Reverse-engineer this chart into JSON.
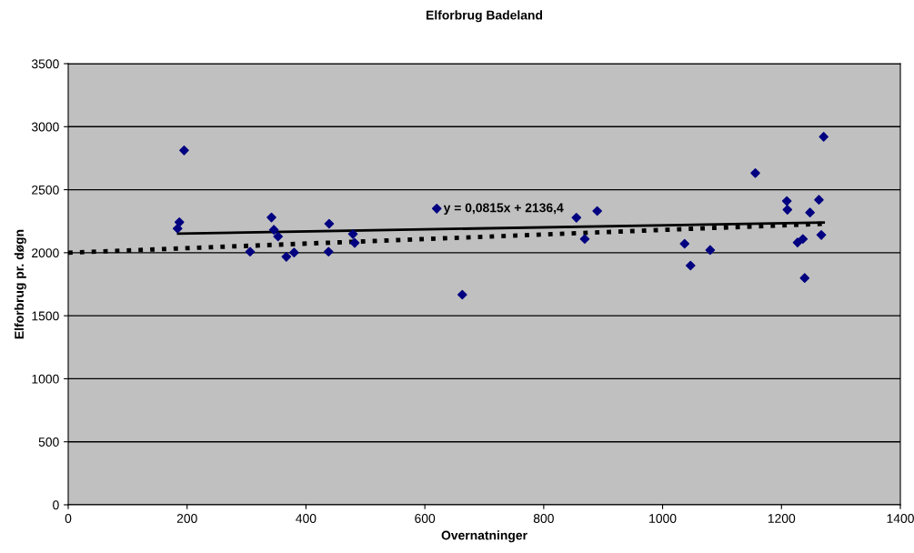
{
  "chart_data": {
    "type": "scatter",
    "title": "Elforbrug Badeland",
    "xlabel": "Overnatninger",
    "ylabel": "Elforbrug pr. døgn",
    "series": [
      {
        "color": "#000080",
        "marker": "diamond",
        "x": [
          187,
          184,
          195,
          306,
          342,
          346,
          353,
          367,
          380,
          439,
          438,
          479,
          482,
          620,
          663,
          855,
          890,
          869,
          1271,
          1156,
          1209,
          1210,
          1263,
          1248,
          1267,
          1236,
          1227,
          1239,
          1037,
          1047,
          1080
        ],
        "values": [
          2242,
          2192,
          2812,
          2008,
          2280,
          2182,
          2129,
          1968,
          2001,
          2230,
          2008,
          2148,
          2078,
          2350,
          1667,
          2278,
          2331,
          2109,
          2920,
          2632,
          2410,
          2341,
          2420,
          2319,
          2141,
          2109,
          2081,
          1799,
          2071,
          1898,
          2021
        ]
      },
      {
        "type": "line",
        "color": "#000000",
        "line_style": "solid",
        "marker": "none",
        "x": [
          185,
          1271
        ],
        "values": [
          2151,
          2240
        ]
      },
      {
        "type": "line",
        "color": "#000000",
        "line_style": "dotted",
        "marker": "none",
        "x": [
          0,
          1271
        ],
        "values": [
          2000,
          2230
        ]
      }
    ],
    "annotations": [
      "y = 0,0815x + 2136,4"
    ],
    "xlim": [
      0,
      1400
    ],
    "xticks": [
      0,
      200,
      400,
      600,
      800,
      1000,
      1200,
      1400
    ],
    "ylim": [
      0,
      3500
    ],
    "yticks": [
      0,
      500,
      1000,
      1500,
      2000,
      2500,
      3000,
      3500
    ],
    "grid": "y"
  }
}
